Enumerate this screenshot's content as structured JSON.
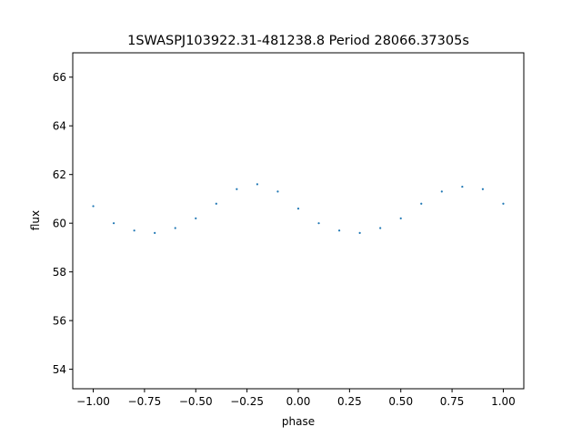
{
  "chart_data": {
    "type": "scatter",
    "title": "1SWASPJ103922.31-481238.8 Period 28066.37305s",
    "xlabel": "phase",
    "ylabel": "flux",
    "xlim": [
      -1.1,
      1.1
    ],
    "ylim": [
      53.2,
      67.0
    ],
    "xticks": [
      -1.0,
      -0.75,
      -0.5,
      -0.25,
      0.0,
      0.25,
      0.5,
      0.75,
      1.0
    ],
    "xtick_labels": [
      "−1.00",
      "−0.75",
      "−0.50",
      "−0.25",
      "0.00",
      "0.25",
      "0.50",
      "0.75",
      "1.00"
    ],
    "yticks": [
      54,
      56,
      58,
      60,
      62,
      64,
      66
    ],
    "ytick_labels": [
      "54",
      "56",
      "58",
      "60",
      "62",
      "64",
      "66"
    ],
    "grid": false,
    "point_color": "#1f77b4",
    "series": [
      {
        "x": [
          -1.0,
          -0.9,
          -0.8,
          -0.7,
          -0.6,
          -0.5,
          -0.4,
          -0.3,
          -0.2,
          -0.1,
          0.0,
          0.1,
          0.2,
          0.3,
          0.4,
          0.5,
          0.6,
          0.7,
          0.8,
          0.9,
          1.0
        ],
        "y": [
          60.7,
          60.0,
          59.7,
          59.6,
          59.8,
          60.2,
          60.8,
          61.4,
          61.6,
          61.3,
          60.6,
          60.0,
          59.7,
          59.6,
          59.8,
          60.2,
          60.8,
          61.3,
          61.5,
          61.4,
          60.8
        ]
      }
    ]
  }
}
